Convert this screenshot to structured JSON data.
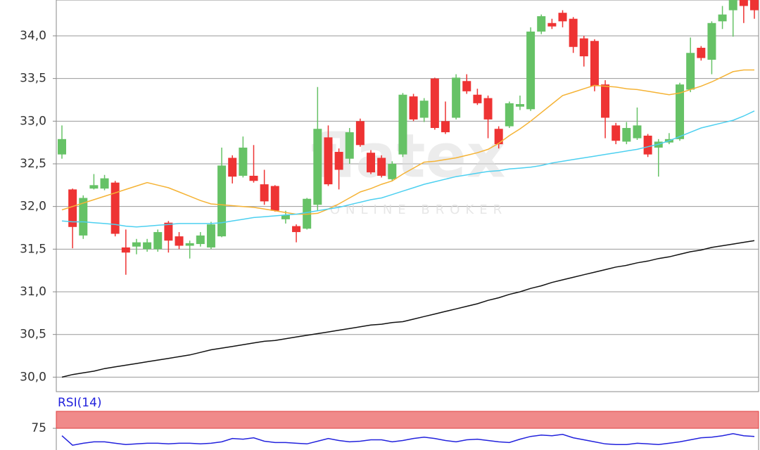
{
  "chart_data": [
    {
      "type": "candlestick",
      "watermark": "flatex",
      "watermark_sub": "ONLINE BROKER",
      "up_color": "#66c266",
      "down_color": "#ee3333",
      "open": [
        32.61,
        32.2,
        31.66,
        32.21,
        32.21,
        32.28,
        31.52,
        31.53,
        31.5,
        31.5,
        31.81,
        31.65,
        31.54,
        31.56,
        31.52,
        31.65,
        32.57,
        32.36,
        32.36,
        32.26,
        32.24,
        31.85,
        31.77,
        31.74,
        32.02,
        32.81,
        32.64,
        32.56,
        33.0,
        32.63,
        32.57,
        32.32,
        32.61,
        33.29,
        33.04,
        33.5,
        33.0,
        33.04,
        33.47,
        33.31,
        33.27,
        32.91,
        32.94,
        33.17,
        33.14,
        34.05,
        34.15,
        34.27,
        34.2,
        33.97,
        33.94,
        33.43,
        32.95,
        32.76,
        32.8,
        32.83,
        32.69,
        32.75,
        32.79,
        33.37,
        33.86,
        33.72,
        34.17,
        34.3,
        34.45,
        34.42
      ],
      "high": [
        32.95,
        32.21,
        32.13,
        32.38,
        32.37,
        32.3,
        31.73,
        31.62,
        31.62,
        31.73,
        31.83,
        31.7,
        31.6,
        31.7,
        31.82,
        32.69,
        32.6,
        32.82,
        32.72,
        32.43,
        32.25,
        31.95,
        31.79,
        32.1,
        33.4,
        32.95,
        32.68,
        32.92,
        33.03,
        32.66,
        32.6,
        32.53,
        33.33,
        33.32,
        33.27,
        33.51,
        33.23,
        33.55,
        33.55,
        33.38,
        33.3,
        32.94,
        33.23,
        33.3,
        34.1,
        34.25,
        34.2,
        34.3,
        34.22,
        34.0,
        33.96,
        33.48,
        32.98,
        32.99,
        33.16,
        32.85,
        32.79,
        32.86,
        33.45,
        33.98,
        33.88,
        34.17,
        34.35,
        34.5,
        34.5,
        34.5
      ],
      "low": [
        32.56,
        31.51,
        31.62,
        32.2,
        32.19,
        31.65,
        31.2,
        31.44,
        31.47,
        31.47,
        31.46,
        31.5,
        31.39,
        31.53,
        31.5,
        31.64,
        32.27,
        32.34,
        32.28,
        32.02,
        31.94,
        31.8,
        31.58,
        31.73,
        31.95,
        32.24,
        32.2,
        32.5,
        32.7,
        32.38,
        32.34,
        32.3,
        32.58,
        33.0,
        32.99,
        32.9,
        32.85,
        33.02,
        33.32,
        33.19,
        32.8,
        32.68,
        32.92,
        33.13,
        33.12,
        34.02,
        34.08,
        34.1,
        33.8,
        33.64,
        33.35,
        32.8,
        32.73,
        32.73,
        32.78,
        32.58,
        32.35,
        32.73,
        32.77,
        33.34,
        33.71,
        33.55,
        34.08,
        33.99,
        34.15,
        34.2
      ],
      "close": [
        32.79,
        31.76,
        32.1,
        32.25,
        32.33,
        31.68,
        31.46,
        31.58,
        31.58,
        31.7,
        31.6,
        31.54,
        31.57,
        31.66,
        31.79,
        32.48,
        32.35,
        32.69,
        32.3,
        32.06,
        31.95,
        31.9,
        31.7,
        32.09,
        32.91,
        32.26,
        32.43,
        32.87,
        32.72,
        32.4,
        32.36,
        32.5,
        33.31,
        33.02,
        33.24,
        32.92,
        32.87,
        33.51,
        33.35,
        33.21,
        33.02,
        32.73,
        33.21,
        33.2,
        34.05,
        34.23,
        34.11,
        34.17,
        33.87,
        33.76,
        33.41,
        33.04,
        32.77,
        32.92,
        32.95,
        32.61,
        32.76,
        32.79,
        33.43,
        33.8,
        33.74,
        34.15,
        34.25,
        34.42,
        34.35,
        34.3
      ],
      "overlays": [
        {
          "color": "#f5b335",
          "values": [
            31.96,
            32.0,
            32.04,
            32.08,
            32.12,
            32.16,
            32.2,
            32.24,
            32.28,
            32.25,
            32.22,
            32.17,
            32.12,
            32.07,
            32.03,
            32.02,
            32.01,
            32.0,
            31.99,
            31.97,
            31.95,
            31.93,
            31.91,
            31.91,
            31.92,
            31.97,
            32.03,
            32.1,
            32.17,
            32.21,
            32.26,
            32.3,
            32.38,
            32.45,
            32.52,
            32.53,
            32.55,
            32.57,
            32.6,
            32.63,
            32.67,
            32.74,
            32.83,
            32.91,
            33.0,
            33.1,
            33.2,
            33.3,
            33.34,
            33.38,
            33.42,
            33.41,
            33.4,
            33.38,
            33.37,
            33.35,
            33.33,
            33.31,
            33.33,
            33.37,
            33.41,
            33.46,
            33.52,
            33.58,
            33.6,
            33.6
          ]
        },
        {
          "color": "#4dd0f0",
          "values": [
            31.83,
            31.82,
            31.82,
            31.81,
            31.8,
            31.79,
            31.77,
            31.76,
            31.77,
            31.78,
            31.79,
            31.8,
            31.8,
            31.8,
            31.8,
            31.81,
            31.83,
            31.85,
            31.87,
            31.88,
            31.89,
            31.9,
            31.91,
            31.93,
            31.95,
            31.97,
            31.99,
            32.02,
            32.05,
            32.08,
            32.1,
            32.14,
            32.18,
            32.22,
            32.26,
            32.29,
            32.32,
            32.35,
            32.37,
            32.39,
            32.41,
            32.42,
            32.44,
            32.45,
            32.46,
            32.48,
            32.51,
            32.53,
            32.55,
            32.57,
            32.59,
            32.61,
            32.63,
            32.65,
            32.67,
            32.7,
            32.73,
            32.77,
            32.82,
            32.87,
            32.92,
            32.95,
            32.98,
            33.01,
            33.06,
            33.12
          ]
        },
        {
          "color": "#111111",
          "values": [
            30.0,
            30.03,
            30.05,
            30.07,
            30.1,
            30.12,
            30.14,
            30.16,
            30.18,
            30.2,
            30.22,
            30.24,
            30.26,
            30.29,
            30.32,
            30.34,
            30.36,
            30.38,
            30.4,
            30.42,
            30.43,
            30.45,
            30.47,
            30.49,
            30.51,
            30.53,
            30.55,
            30.57,
            30.59,
            30.61,
            30.62,
            30.64,
            30.65,
            30.68,
            30.71,
            30.74,
            30.77,
            30.8,
            30.83,
            30.86,
            30.9,
            30.93,
            30.97,
            31.0,
            31.04,
            31.07,
            31.11,
            31.14,
            31.17,
            31.2,
            31.23,
            31.26,
            31.29,
            31.31,
            31.34,
            31.36,
            31.39,
            31.41,
            31.44,
            31.47,
            31.49,
            31.52,
            31.54,
            31.56,
            31.58,
            31.6
          ]
        }
      ],
      "ylim": [
        29.83,
        34.42
      ],
      "yticks": [
        {
          "value": 30,
          "label": "30,0"
        },
        {
          "value": 30.5,
          "label": "30,5"
        },
        {
          "value": 31,
          "label": "31,0"
        },
        {
          "value": 31.5,
          "label": "31,5"
        },
        {
          "value": 32,
          "label": "32,0"
        },
        {
          "value": 32.5,
          "label": "32,5"
        },
        {
          "value": 33,
          "label": "33,0"
        },
        {
          "value": 33.5,
          "label": "33,5"
        },
        {
          "value": 34,
          "label": "34,0"
        }
      ],
      "grid": true
    },
    {
      "type": "line",
      "title": "RSI(14)",
      "color": "#2222dd",
      "values": [
        64,
        50,
        53,
        55,
        55,
        53,
        51,
        52,
        53,
        53,
        52,
        53,
        53,
        52,
        53,
        55,
        60,
        59,
        61,
        56,
        54,
        54,
        53,
        52,
        56,
        60,
        57,
        55,
        56,
        58,
        58,
        55,
        57,
        60,
        62,
        60,
        57,
        55,
        58,
        59,
        57,
        55,
        54,
        59,
        63,
        65,
        64,
        66,
        61,
        58,
        55,
        52,
        51,
        51,
        53,
        52,
        51,
        53,
        55,
        58,
        61,
        62,
        64,
        67,
        64,
        63
      ],
      "ylim": [
        43,
        100
      ],
      "yticks": [
        75
      ],
      "band": [
        75,
        100
      ],
      "band_color": "#f08a8a"
    }
  ]
}
